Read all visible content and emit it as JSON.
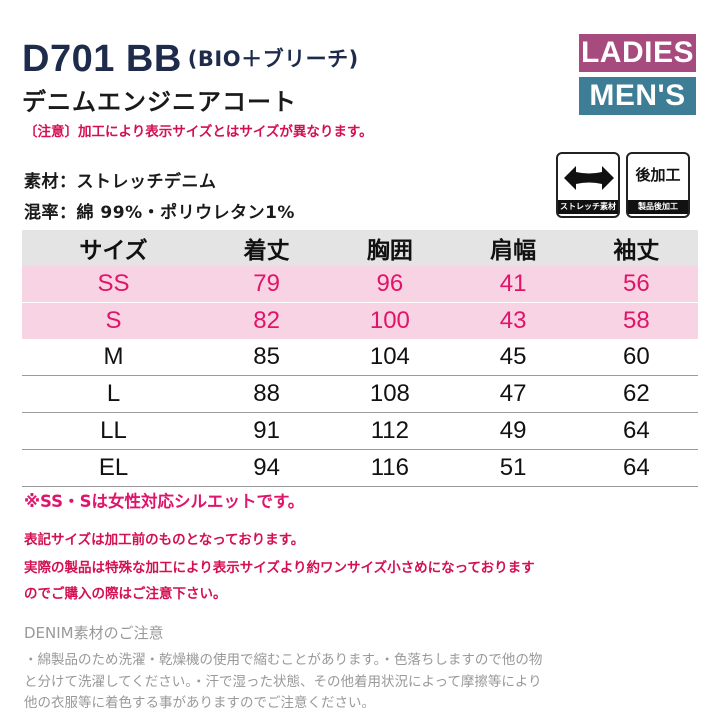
{
  "header": {
    "model": "D701 BB",
    "model_sub": "(BIO＋ブリーチ)",
    "name": "デニムエンジニアコート",
    "badges": [
      "LADIES",
      "MEN'S"
    ],
    "colors": {
      "ladies": "#a74a7e",
      "mens": "#3d7d95",
      "title": "#1e2b4a"
    }
  },
  "warning": "〔注意〕加工により表示サイズとはサイズが異なります。",
  "material": {
    "line1": "素材：ストレッチデニム",
    "line2": "混率：綿 99%・ポリウレタン1%"
  },
  "icons": [
    {
      "name": "stretch-icon",
      "caption": "ストレッチ素材"
    },
    {
      "name": "post-process-icon",
      "main": "後加工",
      "caption": "製品後加工"
    }
  ],
  "table": {
    "headers": [
      "サイズ",
      "着丈",
      "胸囲",
      "肩幅",
      "袖丈"
    ],
    "rows": [
      [
        "SS",
        "79",
        "96",
        "41",
        "56"
      ],
      [
        "S",
        "82",
        "100",
        "43",
        "58"
      ],
      [
        "M",
        "85",
        "104",
        "45",
        "60"
      ],
      [
        "L",
        "88",
        "108",
        "47",
        "62"
      ],
      [
        "LL",
        "91",
        "112",
        "49",
        "64"
      ],
      [
        "EL",
        "94",
        "116",
        "51",
        "64"
      ]
    ],
    "highlight_color": "#e0146a"
  },
  "notes": {
    "ladies_note": "※SS・Sは女性対応シルエットです。",
    "red_lines": [
      "表記サイズは加工前のものとなっております。",
      "実際の製品は特殊な加工により表示サイズより約ワンサイズ小さめになっております",
      "のでご購入の際はご注意下さい。"
    ],
    "denim_title": "DENIM素材のご注意",
    "denim_lines": [
      "・綿製品のため洗濯・乾燥機の使用で縮むことがあります。・色落ちしますので他の物",
      "と分けて洗濯してください。・汗で湿った状態、その他着用状況によって摩擦等により",
      "他の衣服等に着色する事がありますのでご注意ください。"
    ]
  }
}
